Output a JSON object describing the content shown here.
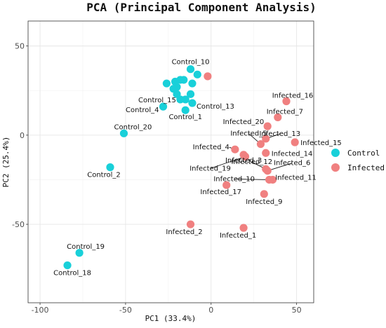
{
  "chart_data": {
    "type": "scatter",
    "title": "PCA (Principal Component Analysis)",
    "xlabel": "PC1 (33.4%)",
    "ylabel": "PC2 (25.4%)",
    "xlim": [
      -107,
      60
    ],
    "ylim": [
      -94,
      64
    ],
    "xticks": [
      -100,
      -50,
      0,
      50
    ],
    "yticks": [
      -50,
      0,
      50
    ],
    "grid": true,
    "legend_position": "right",
    "series": [
      {
        "name": "Control",
        "color": "#19d0d9",
        "points": [
          {
            "x": -12,
            "y": 37,
            "label": "Control_10"
          },
          {
            "x": -8,
            "y": 34
          },
          {
            "x": -26,
            "y": 29
          },
          {
            "x": -21,
            "y": 30
          },
          {
            "x": -18,
            "y": 31
          },
          {
            "x": -16,
            "y": 31
          },
          {
            "x": -20,
            "y": 27
          },
          {
            "x": -11,
            "y": 29
          },
          {
            "x": -22,
            "y": 26
          },
          {
            "x": -20,
            "y": 23
          },
          {
            "x": -12,
            "y": 23
          },
          {
            "x": -18,
            "y": 20,
            "label": "Control_15"
          },
          {
            "x": -15,
            "y": 20
          },
          {
            "x": -11,
            "y": 18,
            "label": "Control_13"
          },
          {
            "x": -28,
            "y": 16,
            "label": "Control_4"
          },
          {
            "x": -15,
            "y": 14,
            "label": "Control_1"
          },
          {
            "x": -51,
            "y": 1,
            "label": "Control_20"
          },
          {
            "x": -59,
            "y": -18,
            "label": "Control_2"
          },
          {
            "x": -77,
            "y": -66,
            "label": "Control_19"
          },
          {
            "x": -84,
            "y": -73,
            "label": "Control_18"
          }
        ]
      },
      {
        "name": "Infected",
        "color": "#f08080",
        "points": [
          {
            "x": -2,
            "y": 33
          },
          {
            "x": 44,
            "y": 19,
            "label": "Infected_16"
          },
          {
            "x": 39,
            "y": 10,
            "label": "Infected_7"
          },
          {
            "x": 33,
            "y": 5,
            "label": "Infected_20"
          },
          {
            "x": 32,
            "y": -2,
            "label": "Infected_13"
          },
          {
            "x": 29,
            "y": -5,
            "label": "Infected_5"
          },
          {
            "x": 49,
            "y": -4,
            "label": "Infected_15"
          },
          {
            "x": 14,
            "y": -8,
            "label": "Infected_4"
          },
          {
            "x": 32,
            "y": -10,
            "label": "Infected_14"
          },
          {
            "x": 19,
            "y": -11,
            "label": "Infected_3"
          },
          {
            "x": 20,
            "y": -12,
            "label": "Infected_19"
          },
          {
            "x": 32,
            "y": -19,
            "label": "Infected_12"
          },
          {
            "x": 33,
            "y": -20,
            "label": "Infected_6"
          },
          {
            "x": 36,
            "y": -25,
            "label": "Infected_11"
          },
          {
            "x": 34,
            "y": -25,
            "label": "Infected_10"
          },
          {
            "x": 9,
            "y": -28,
            "label": "Infected_17"
          },
          {
            "x": 31,
            "y": -33,
            "label": "Infected_9"
          },
          {
            "x": -12,
            "y": -50,
            "label": "Infected_2"
          },
          {
            "x": 19,
            "y": -52,
            "label": "Infected_1"
          }
        ]
      }
    ]
  },
  "labels": {
    "Control_10": {
      "dx": 0,
      "dy": -7,
      "anchor": "middle"
    },
    "Control_15": {
      "dx": -6,
      "dy": 4,
      "anchor": "end"
    },
    "Control_13": {
      "dx": 6,
      "dy": 8,
      "anchor": "start"
    },
    "Control_4": {
      "dx": -6,
      "dy": 8,
      "anchor": "end"
    },
    "Control_1": {
      "dx": 0,
      "dy": 13,
      "anchor": "middle"
    },
    "Control_20": {
      "dx": 13,
      "dy": -6,
      "anchor": "middle"
    },
    "Control_2": {
      "dx": -9,
      "dy": 14,
      "anchor": "middle"
    },
    "Control_19": {
      "dx": 9,
      "dy": -6,
      "anchor": "middle"
    },
    "Control_18": {
      "dx": 7,
      "dy": 14,
      "anchor": "middle"
    },
    "Infected_16": {
      "dx": 9,
      "dy": -5,
      "anchor": "middle"
    },
    "Infected_7": {
      "dx": 10,
      "dy": -5,
      "anchor": "middle"
    },
    "Infected_20": {
      "dx": -5,
      "dy": -3,
      "anchor": "end"
    },
    "Infected_13": {
      "dx": 20,
      "dy": -4,
      "anchor": "middle",
      "leader": true
    },
    "Infected_5": {
      "dx": -17,
      "dy": -12,
      "anchor": "middle",
      "leader": true
    },
    "Infected_15": {
      "dx": 8,
      "dy": 4,
      "anchor": "start"
    },
    "Infected_4": {
      "dx": -8,
      "dy": 0,
      "anchor": "end",
      "leader": true
    },
    "Infected_14": {
      "dx": 8,
      "dy": 4,
      "anchor": "start"
    },
    "Infected_3": {
      "dx": 0,
      "dy": 11,
      "anchor": "middle",
      "leader": true
    },
    "Infected_19": {
      "dx": -50,
      "dy": 20,
      "anchor": "middle",
      "leader": true
    },
    "Infected_12": {
      "dx": -20,
      "dy": -7,
      "anchor": "middle",
      "leader": true
    },
    "Infected_6": {
      "dx": 35,
      "dy": -8,
      "anchor": "middle",
      "leader": true
    },
    "Infected_11": {
      "dx": 33,
      "dy": 0,
      "anchor": "middle"
    },
    "Infected_10": {
      "dx": -50,
      "dy": 2,
      "anchor": "middle",
      "leader": true
    },
    "Infected_8": {
      "dx": 0,
      "dy": 12,
      "anchor": "middle"
    },
    "Infected_17": {
      "dx": -8,
      "dy": 13,
      "anchor": "middle"
    },
    "Infected_9": {
      "dx": 0,
      "dy": 14,
      "anchor": "middle"
    },
    "Infected_2": {
      "dx": -9,
      "dy": 14,
      "anchor": "middle"
    },
    "Infected_1": {
      "dx": -8,
      "dy": 14,
      "anchor": "middle"
    }
  }
}
